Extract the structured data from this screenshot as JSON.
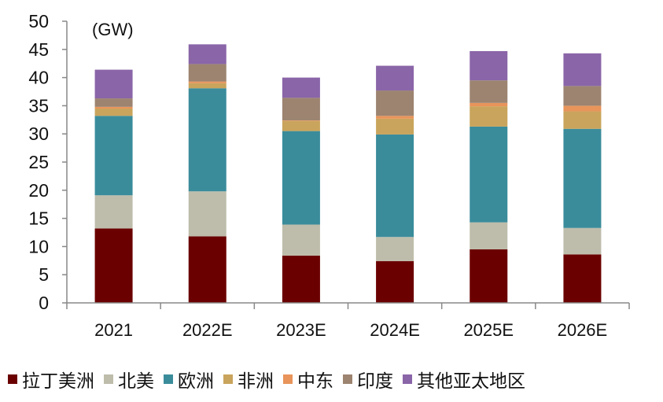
{
  "chart_data": {
    "type": "bar",
    "stacked": true,
    "unit_label": "(GW)",
    "categories": [
      "2021",
      "2022E",
      "2023E",
      "2024E",
      "2025E",
      "2026E"
    ],
    "ylim": [
      0,
      50
    ],
    "yticks": [
      "0",
      "5",
      "10",
      "15",
      "20",
      "25",
      "30",
      "35",
      "40",
      "45",
      "50"
    ],
    "grid": false,
    "legend_position": "bottom",
    "series": [
      {
        "name": "拉丁美洲",
        "color": "#6B0000",
        "values": [
          13.2,
          11.8,
          8.4,
          7.4,
          9.5,
          8.6
        ]
      },
      {
        "name": "北美",
        "color": "#BEBDAB",
        "values": [
          5.9,
          8.0,
          5.5,
          4.3,
          4.8,
          4.7
        ]
      },
      {
        "name": "欧洲",
        "color": "#3A8C9B",
        "values": [
          14.1,
          18.3,
          16.6,
          18.2,
          17.0,
          17.6
        ]
      },
      {
        "name": "非洲",
        "color": "#C9A45C",
        "values": [
          1.3,
          0.9,
          1.8,
          2.8,
          3.6,
          3.1
        ]
      },
      {
        "name": "中东",
        "color": "#E8945A",
        "values": [
          0.3,
          0.3,
          0.1,
          0.5,
          0.6,
          1.0
        ]
      },
      {
        "name": "印度",
        "color": "#9C8470",
        "values": [
          1.5,
          3.1,
          4.0,
          4.5,
          4.0,
          3.5
        ]
      },
      {
        "name": "其他亚太地区",
        "color": "#8A65A8",
        "values": [
          5.1,
          3.5,
          3.6,
          4.4,
          5.2,
          5.8
        ]
      }
    ]
  }
}
